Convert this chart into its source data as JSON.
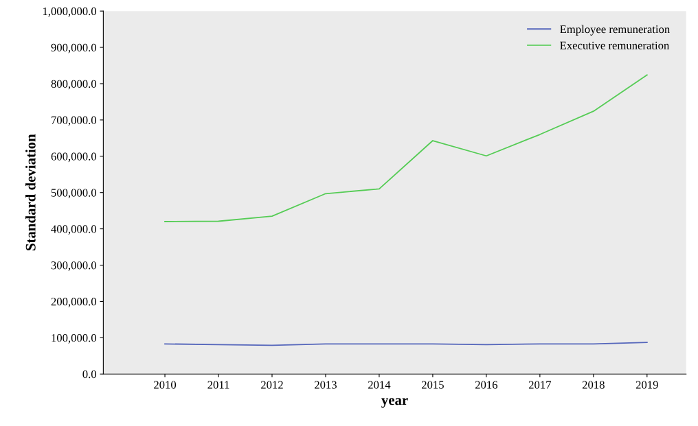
{
  "chart_data": {
    "type": "line",
    "xlabel": "year",
    "ylabel": "Standard deviation",
    "categories": [
      "2010",
      "2011",
      "2012",
      "2013",
      "2014",
      "2015",
      "2016",
      "2017",
      "2018",
      "2019"
    ],
    "series": [
      {
        "name": "Employee remuneration",
        "color": "#5566bb",
        "values": [
          83000,
          81000,
          79000,
          83000,
          83000,
          83000,
          81000,
          83000,
          83000,
          87000
        ]
      },
      {
        "name": "Executive remuneration",
        "color": "#55cc55",
        "values": [
          420000,
          421000,
          435000,
          497000,
          510000,
          643000,
          601000,
          660000,
          724000,
          824000
        ]
      }
    ],
    "ylim": [
      0,
      1000000
    ],
    "yticks": [
      {
        "value": 0,
        "label": "0.0"
      },
      {
        "value": 100000,
        "label": "100,000.0"
      },
      {
        "value": 200000,
        "label": "200,000.0"
      },
      {
        "value": 300000,
        "label": "300,000.0"
      },
      {
        "value": 400000,
        "label": "400,000.0"
      },
      {
        "value": 500000,
        "label": "500,000.0"
      },
      {
        "value": 600000,
        "label": "600,000.0"
      },
      {
        "value": 700000,
        "label": "700,000.0"
      },
      {
        "value": 800000,
        "label": "800,000.0"
      },
      {
        "value": 900000,
        "label": "900,000.0"
      },
      {
        "value": 1000000,
        "label": "1,000,000.0"
      }
    ],
    "grid": false,
    "legend": "top right",
    "marker": "none",
    "line_style": "solid"
  }
}
